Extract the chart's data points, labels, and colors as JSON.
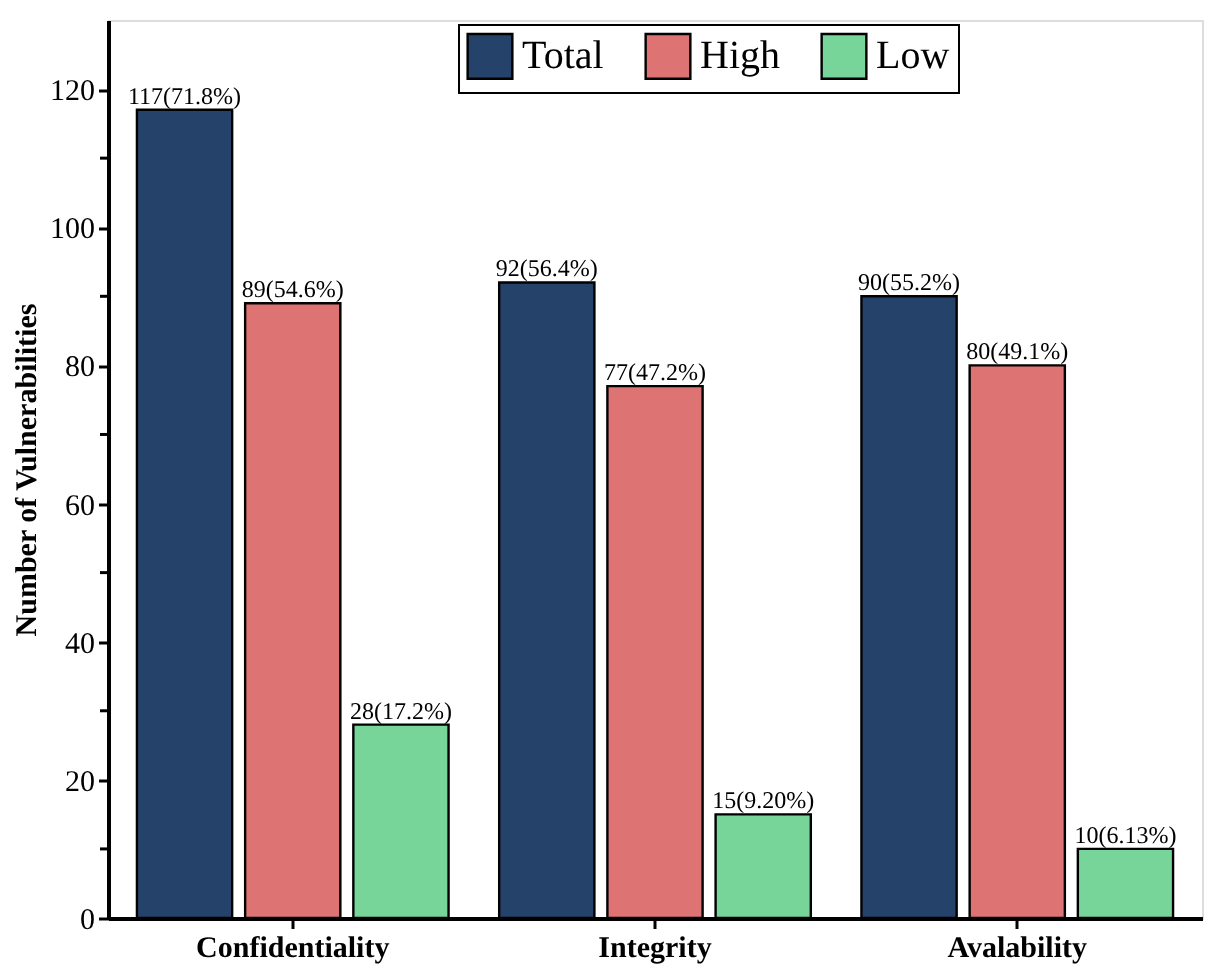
{
  "chart_data": {
    "type": "bar",
    "ylabel": "Number of Vulnerabilities",
    "categories": [
      "Confidentiality",
      "Integrity",
      "Avalability"
    ],
    "series": [
      {
        "name": "Total",
        "color": "#25436a",
        "values": [
          117,
          92,
          90
        ],
        "value_labels": [
          "117(71.8%)",
          "92(56.4%)",
          "90(55.2%)"
        ]
      },
      {
        "name": "High",
        "color": "#de7373",
        "values": [
          89,
          77,
          80
        ],
        "value_labels": [
          "89(54.6%)",
          "77(47.2%)",
          "80(49.1%)"
        ]
      },
      {
        "name": "Low",
        "color": "#78d59a",
        "values": [
          28,
          15,
          10
        ],
        "value_labels": [
          "28(17.2%)",
          "15(9.20%)",
          "10(6.13%)"
        ]
      }
    ],
    "ylim": [
      0,
      130
    ],
    "yticks": [
      0,
      {
        "value": 10,
        "label": null
      },
      20,
      {
        "value": 30,
        "label": null
      },
      40,
      {
        "value": 50,
        "label": null
      },
      60,
      {
        "value": 70,
        "label": null
      },
      80,
      {
        "value": 90,
        "label": null
      },
      100,
      {
        "value": 110,
        "label": null
      },
      120
    ],
    "grid": false,
    "legend": "top"
  }
}
